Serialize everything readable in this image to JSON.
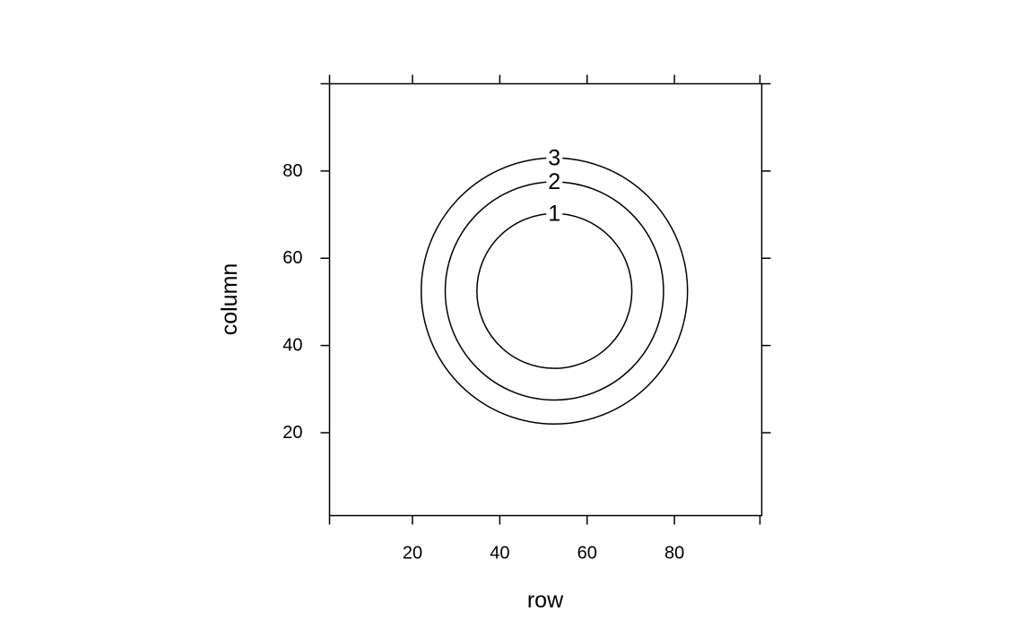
{
  "chart_data": {
    "type": "contour",
    "xlabel": "row",
    "ylabel": "column",
    "xlim": [
      1,
      100
    ],
    "ylim": [
      1,
      100
    ],
    "xticks": [
      20,
      40,
      60,
      80
    ],
    "yticks": [
      20,
      40,
      60,
      80
    ],
    "center": [
      52.5,
      52.5
    ],
    "levels": [
      {
        "label": "1",
        "radius": 17.75
      },
      {
        "label": "2",
        "radius": 25.0
      },
      {
        "label": "3",
        "radius": 30.5
      }
    ],
    "grid": false,
    "legend": "none"
  }
}
